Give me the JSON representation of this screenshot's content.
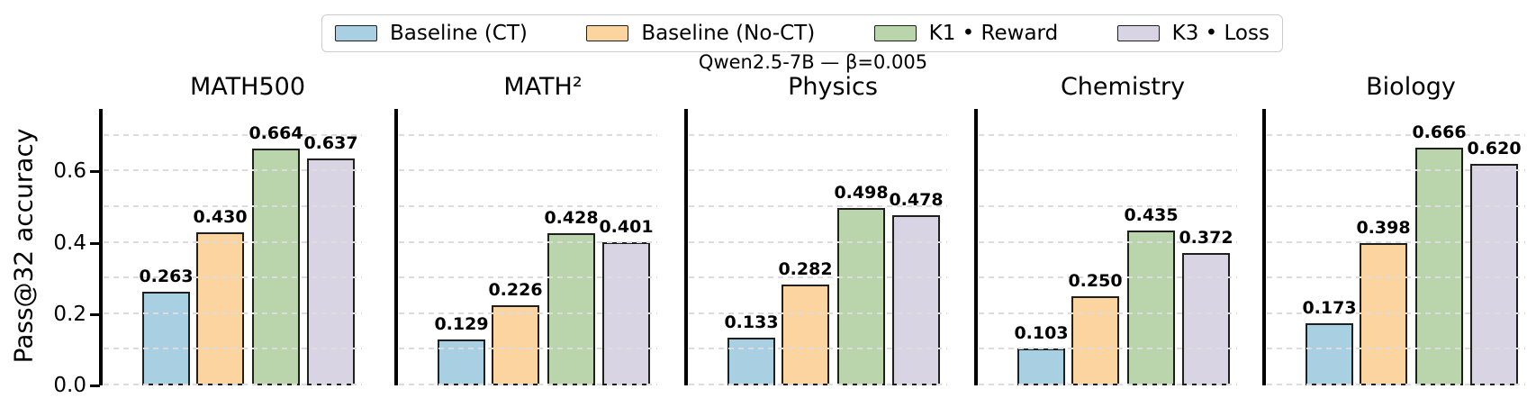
{
  "figure": {
    "suptitle": "Qwen2.5-7B — β=0.005",
    "ylabel": "Pass@32 accuracy"
  },
  "colors": {
    "background": "#ffffff",
    "bar_edge": "#1f1f1f",
    "gridline": "#dcdcdc",
    "spine": "#000000",
    "legend_border": "#cccccc",
    "text": "#000000"
  },
  "legend": {
    "items": [
      {
        "label": "Baseline (CT)",
        "color": "#a9cfe2",
        "icon": "swatch-blue"
      },
      {
        "label": "Baseline (No-CT)",
        "color": "#fbd4a0",
        "icon": "swatch-orange"
      },
      {
        "label": "K1 • Reward",
        "color": "#bad4ac",
        "icon": "swatch-green"
      },
      {
        "label": "K3 • Loss",
        "color": "#d8d4e4",
        "icon": "swatch-purple"
      }
    ]
  },
  "chart_data": {
    "type": "bar",
    "title": "Qwen2.5-7B — β=0.005",
    "ylabel": "Pass@32 accuracy",
    "ylim": [
      0,
      0.77
    ],
    "yticks": [
      0.0,
      0.2,
      0.4,
      0.6
    ],
    "ytick_labels": [
      "0.0",
      "0.2",
      "0.4",
      "0.6"
    ],
    "grid": {
      "visible": true,
      "style": "dashed",
      "interval": 0.1,
      "max": 0.7,
      "drawn_over_bars": true
    },
    "legend_position": "top-center",
    "series_names": [
      "Baseline (CT)",
      "Baseline (No-CT)",
      "K1 • Reward",
      "K3 • Loss"
    ],
    "panels": [
      {
        "title": "MATH500",
        "values": [
          0.263,
          0.43,
          0.664,
          0.637
        ],
        "labels": [
          "0.263",
          "0.430",
          "0.664",
          "0.637"
        ]
      },
      {
        "title": "MATH²",
        "values": [
          0.129,
          0.226,
          0.428,
          0.401
        ],
        "labels": [
          "0.129",
          "0.226",
          "0.428",
          "0.401"
        ]
      },
      {
        "title": "Physics",
        "values": [
          0.133,
          0.282,
          0.498,
          0.478
        ],
        "labels": [
          "0.133",
          "0.282",
          "0.498",
          "0.478"
        ]
      },
      {
        "title": "Chemistry",
        "values": [
          0.103,
          0.25,
          0.435,
          0.372
        ],
        "labels": [
          "0.103",
          "0.250",
          "0.435",
          "0.372"
        ]
      },
      {
        "title": "Biology",
        "values": [
          0.173,
          0.398,
          0.666,
          0.62
        ],
        "labels": [
          "0.173",
          "0.398",
          "0.666",
          "0.620"
        ]
      }
    ]
  }
}
